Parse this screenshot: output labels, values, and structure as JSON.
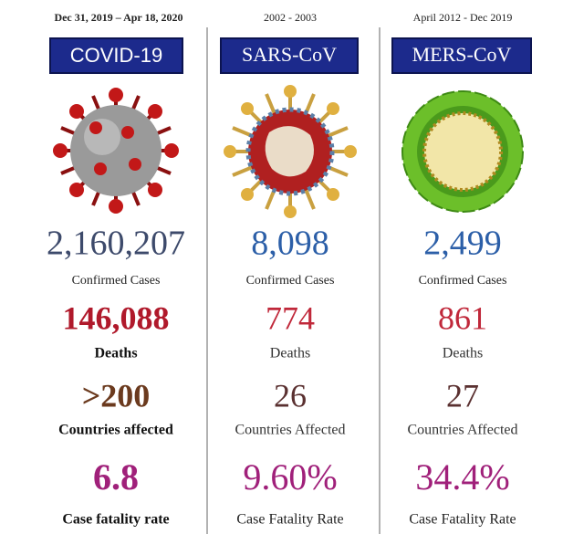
{
  "columns": [
    {
      "date": "Dec 31, 2019 – Apr 18, 2020",
      "name": "COVID-19",
      "confirmed": "2,160,207",
      "confirmed_label": "Confirmed Cases",
      "deaths": "146,088",
      "deaths_label": "Deaths",
      "countries": ">200",
      "countries_label": "Countries affected",
      "cfr": "6.8",
      "cfr_label": "Case fatality rate"
    },
    {
      "date": "2002 - 2003",
      "name": "SARS-CoV",
      "confirmed": "8,098",
      "confirmed_label": "Confirmed Cases",
      "deaths": "774",
      "deaths_label": "Deaths",
      "countries": "26",
      "countries_label": "Countries Affected",
      "cfr": "9.60%",
      "cfr_label": "Case Fatality Rate"
    },
    {
      "date": "April 2012 - Dec 2019",
      "name": "MERS-CoV",
      "confirmed": "2,499",
      "confirmed_label": "Confirmed Cases",
      "deaths": "861",
      "deaths_label": "Deaths",
      "countries": "27",
      "countries_label": "Countries Affected",
      "cfr": "34.4%",
      "cfr_label": "Case Fatality Rate"
    }
  ]
}
